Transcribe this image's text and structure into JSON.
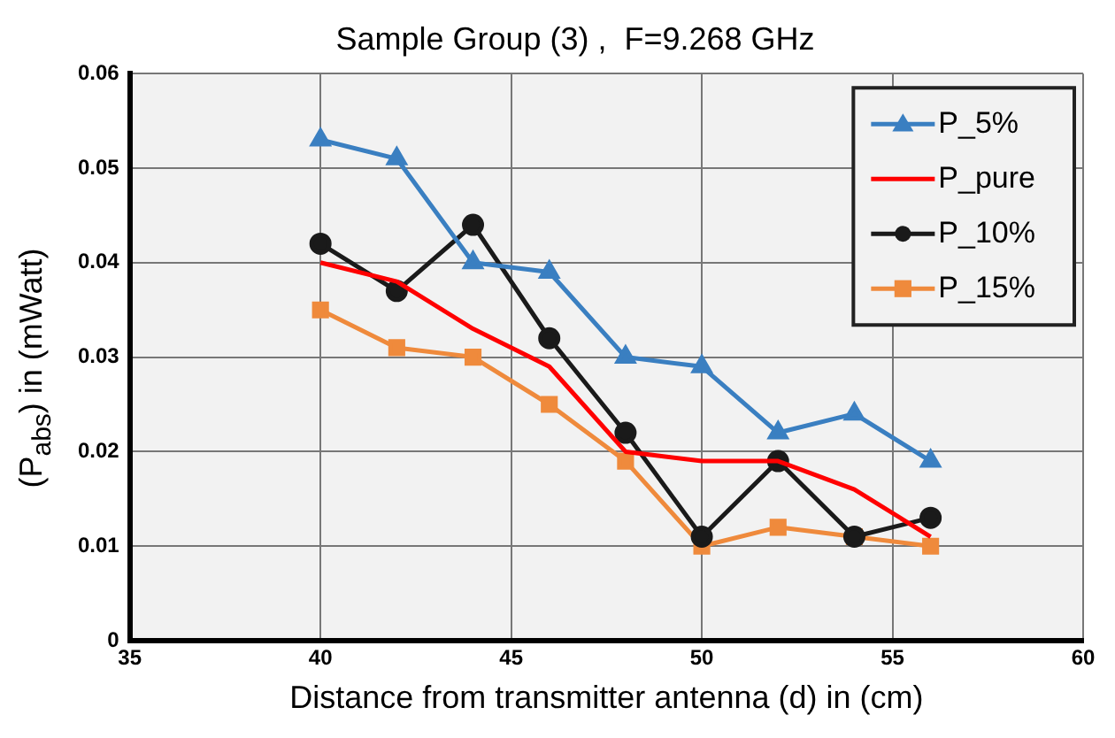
{
  "chart_data": {
    "type": "line",
    "title": "Sample Group (3) ,  F=9.268 GHz",
    "xlabel": "Distance from transmitter antenna (d) in (cm)",
    "ylabel": "(P$_{abs}$) in (mWatt)",
    "x": [
      40,
      42,
      44,
      46,
      48,
      50,
      52,
      54,
      56
    ],
    "series": [
      {
        "name": "P_5%",
        "color": "#3a7fc1",
        "marker": "triangle",
        "values": [
          0.053,
          0.051,
          0.04,
          0.039,
          0.03,
          0.029,
          0.022,
          0.024,
          0.019
        ]
      },
      {
        "name": "P_pure",
        "color": "#ff0000",
        "marker": "none",
        "values": [
          0.04,
          0.038,
          0.033,
          0.029,
          0.02,
          0.019,
          0.019,
          0.016,
          0.011
        ]
      },
      {
        "name": "P_10%",
        "color": "#1a1a1a",
        "marker": "circle",
        "values": [
          0.042,
          0.037,
          0.044,
          0.032,
          0.022,
          0.011,
          0.019,
          0.011,
          0.013
        ]
      },
      {
        "name": "P_15%",
        "color": "#ef8a3c",
        "marker": "square",
        "values": [
          0.035,
          0.031,
          0.03,
          0.025,
          0.019,
          0.01,
          0.012,
          0.011,
          0.01
        ]
      }
    ],
    "xlim": [
      35,
      60
    ],
    "xticks": [
      35,
      40,
      45,
      50,
      55,
      60
    ],
    "ylim": [
      0,
      0.06
    ],
    "yticks": [
      {
        "value": 0,
        "label": "0"
      },
      {
        "value": 0.01,
        "label": "0.01"
      },
      {
        "value": 0.02,
        "label": "0.02"
      },
      {
        "value": 0.03,
        "label": "0.03"
      },
      {
        "value": 0.04,
        "label": "0.04"
      },
      {
        "value": 0.05,
        "label": "0.05"
      },
      {
        "value": 0.06,
        "label": "0.06"
      }
    ],
    "grid": true,
    "legend": "top right"
  }
}
